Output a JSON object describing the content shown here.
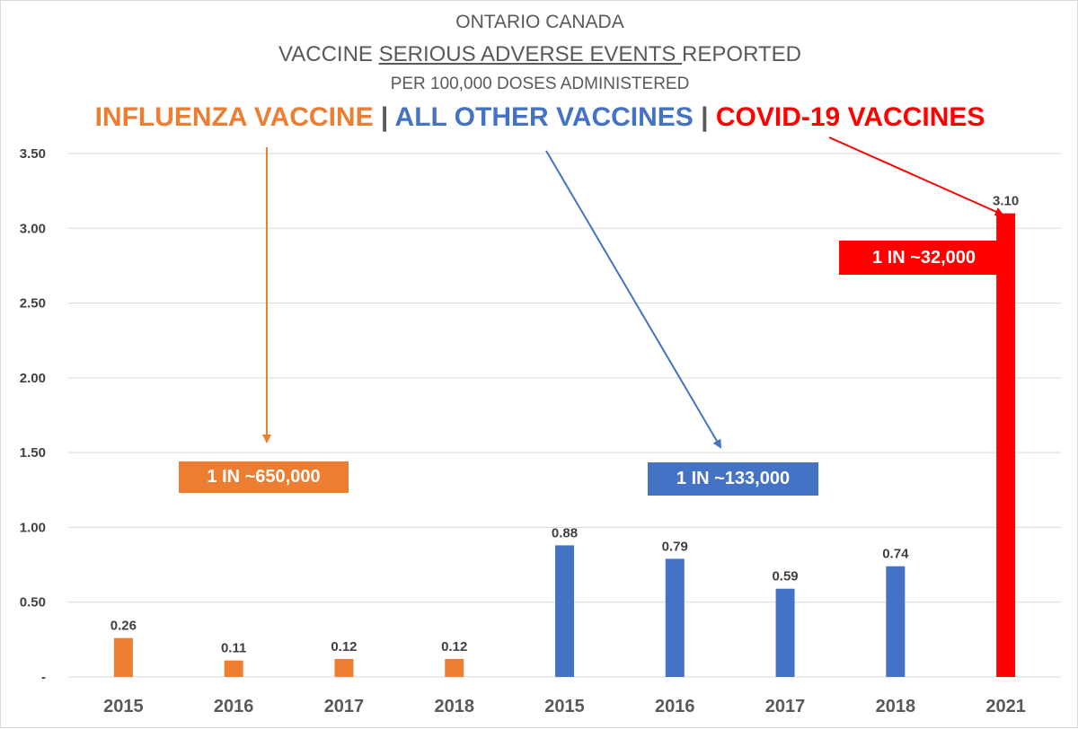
{
  "title": {
    "line1": "ONTARIO CANADA",
    "line2_prefix": "VACCINE ",
    "line2_underlined": "SERIOUS ADVERSE EVENTS ",
    "line2_suffix": "REPORTED",
    "line3": "PER 100,000 DOSES ADMINISTERED"
  },
  "legend": {
    "influenza": "INFLUENZA VACCINE",
    "other": "ALL OTHER VACCINES",
    "covid": "COVID-19 VACCINES",
    "separator": " | "
  },
  "colors": {
    "influenza": "#ED7D31",
    "other": "#4472C4",
    "covid": "#FF0000",
    "axis_text": "#595959",
    "gridline": "#D9D9D9"
  },
  "callouts": {
    "influenza": "1 IN ~650,000",
    "other": "1 IN ~133,000",
    "covid": "1 IN ~32,000"
  },
  "chart_data": {
    "type": "bar",
    "categories": [
      "2015",
      "2016",
      "2017",
      "2018",
      "2015",
      "2016",
      "2017",
      "2018",
      "2021"
    ],
    "values": [
      0.26,
      0.11,
      0.12,
      0.12,
      0.88,
      0.79,
      0.59,
      0.74,
      3.1
    ],
    "value_labels": [
      "0.26",
      "0.11",
      "0.12",
      "0.12",
      "0.88",
      "0.79",
      "0.59",
      "0.74",
      "3.10"
    ],
    "bar_groups": [
      "influenza",
      "influenza",
      "influenza",
      "influenza",
      "other",
      "other",
      "other",
      "other",
      "covid"
    ],
    "ylim": [
      0,
      3.5
    ],
    "yticks": [
      0,
      0.5,
      1.0,
      1.5,
      2.0,
      2.5,
      3.0,
      3.5
    ],
    "ytick_labels": [
      "-",
      "0.50",
      "1.00",
      "1.50",
      "2.00",
      "2.50",
      "3.00",
      "3.50"
    ],
    "grid": true
  }
}
